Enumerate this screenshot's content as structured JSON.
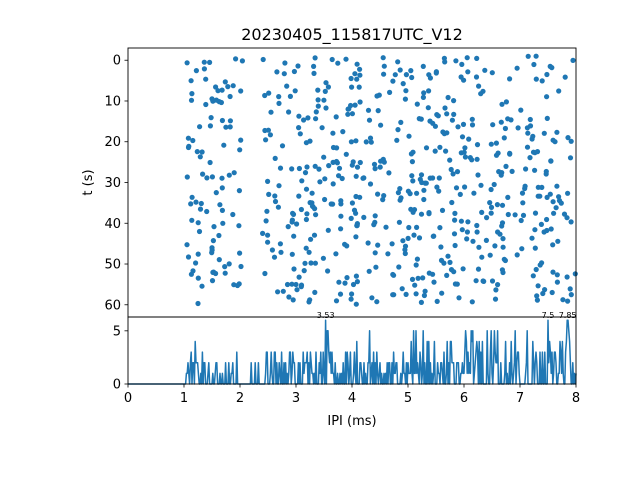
{
  "chart_data": [
    {
      "type": "scatter",
      "panel": "raster",
      "title": "20230405_115817UTC_V12",
      "xlabel": "",
      "ylabel": "t (s)",
      "xlim": [
        0,
        8
      ],
      "ylim": [
        63,
        -3
      ],
      "y_inverted": true,
      "yticks": [
        0,
        10,
        20,
        30,
        40,
        50,
        60
      ],
      "x_ticklabels_shown": false,
      "grid": false,
      "marker": "circle",
      "color": "#1f77b4",
      "n_points_approx": 650
    },
    {
      "type": "line",
      "panel": "histogram",
      "xlabel": "IPI (ms)",
      "ylabel": "",
      "xlim": [
        0,
        8
      ],
      "ylim": [
        0,
        6.3
      ],
      "xticks": [
        0,
        1,
        2,
        3,
        4,
        5,
        6,
        7,
        8
      ],
      "yticks": [
        0,
        5
      ],
      "grid": false,
      "color": "#1f77b4",
      "zero_until": 1.0,
      "peak_labels": [
        {
          "x": 3.53,
          "y": 6,
          "text": "3.53"
        },
        {
          "x": 7.5,
          "y": 6,
          "text": "7.5"
        },
        {
          "x": 7.85,
          "y": 6,
          "text": "7.85"
        }
      ]
    }
  ]
}
